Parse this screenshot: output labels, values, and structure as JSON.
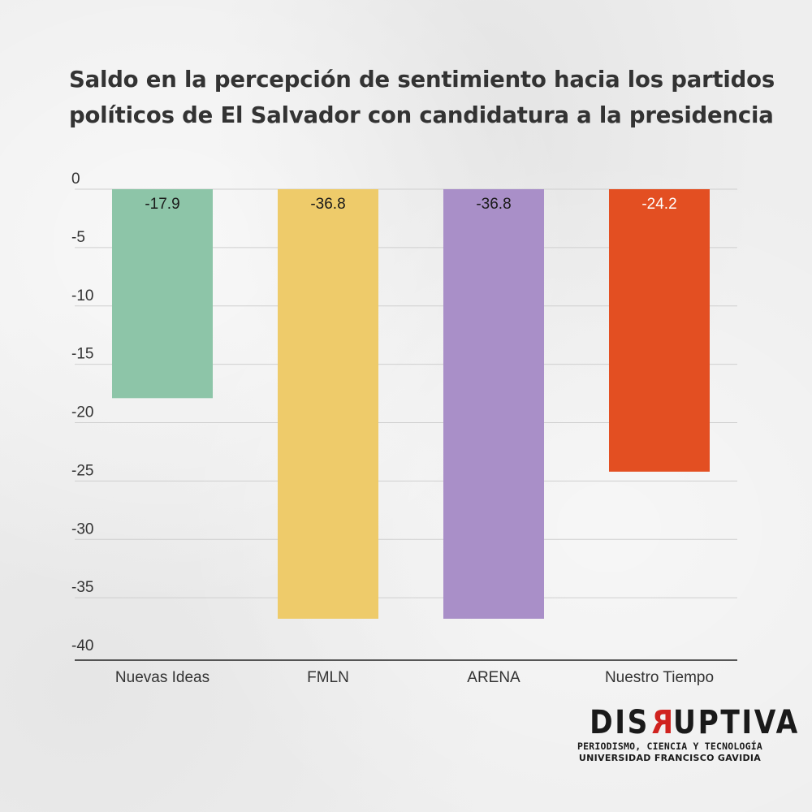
{
  "chart_data": {
    "type": "bar",
    "title": "Saldo en la percepción de sentimiento hacia los partidos políticos de El Salvador con candidatura a la presidencia",
    "title_lines": [
      "Saldo en la percepción de sentimiento hacia los partidos",
      "políticos de El Salvador con candidatura a la presidencia"
    ],
    "xlabel": "",
    "ylabel": "",
    "categories": [
      "Nuevas Ideas",
      "FMLN",
      "ARENA",
      "Nuestro Tiempo"
    ],
    "values": [
      -17.9,
      -36.8,
      -36.8,
      -24.2
    ],
    "value_labels": [
      "-17.9",
      "-36.8",
      "-36.8",
      "-24.2"
    ],
    "colors": [
      "#8dc5a8",
      "#eecb6a",
      "#a98fc8",
      "#e34f22"
    ],
    "value_label_colors": [
      "#1a1a1a",
      "#1a1a1a",
      "#1a1a1a",
      "#ffffff"
    ],
    "ylim": [
      -40,
      0
    ],
    "yticks": [
      0,
      -5,
      -10,
      -15,
      -20,
      -25,
      -30,
      -35,
      -40
    ],
    "ytick_labels": [
      "0",
      "-5",
      "-10",
      "-15",
      "-20",
      "-25",
      "-30",
      "-35",
      "-40"
    ],
    "grid": true,
    "legend": "none"
  },
  "logo": {
    "word_pre": "DIS",
    "word_r": "R",
    "word_post": "UPTIVA",
    "line1": "PERIODISMO, CIENCIA Y TECNOLOGÍA",
    "line2": "UNIVERSIDAD FRANCISCO GAVIDIA"
  }
}
